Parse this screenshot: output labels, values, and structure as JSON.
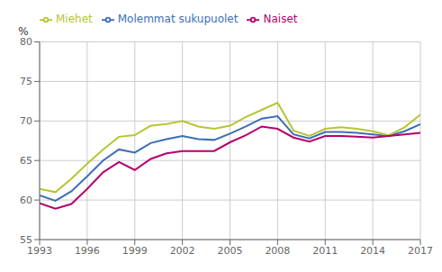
{
  "chart_data": {
    "type": "line",
    "y_label": "%",
    "x": [
      1993,
      1994,
      1995,
      1996,
      1997,
      1998,
      1999,
      2000,
      2001,
      2002,
      2003,
      2004,
      2005,
      2006,
      2007,
      2008,
      2009,
      2010,
      2011,
      2012,
      2013,
      2014,
      2015,
      2016,
      2017
    ],
    "series": [
      {
        "name": "Molemmat sukupuolet",
        "color": "#3d6eb5",
        "values": [
          60.6,
          59.9,
          61.1,
          63.0,
          65.0,
          66.4,
          66.0,
          67.2,
          67.7,
          68.1,
          67.7,
          67.6,
          68.4,
          69.3,
          70.3,
          70.6,
          68.3,
          67.8,
          68.6,
          68.6,
          68.5,
          68.3,
          68.1,
          68.7,
          69.6
        ]
      },
      {
        "name": "Miehet",
        "color": "#b5c633",
        "values": [
          61.4,
          61.0,
          62.7,
          64.6,
          66.4,
          68.0,
          68.2,
          69.4,
          69.6,
          70.0,
          69.3,
          69.0,
          69.4,
          70.5,
          71.4,
          72.3,
          68.8,
          68.1,
          69.0,
          69.2,
          69.0,
          68.7,
          68.2,
          69.2,
          70.8
        ]
      },
      {
        "name": "Naiset",
        "color": "#b5006e",
        "values": [
          59.6,
          58.9,
          59.5,
          61.4,
          63.5,
          64.8,
          63.8,
          65.2,
          65.9,
          66.2,
          66.2,
          66.2,
          67.3,
          68.2,
          69.3,
          69.0,
          67.9,
          67.4,
          68.1,
          68.1,
          68.0,
          67.9,
          68.1,
          68.3,
          68.5
        ]
      }
    ],
    "xlim": [
      1993,
      2017
    ],
    "xticks": [
      1993,
      1996,
      1999,
      2002,
      2005,
      2008,
      2011,
      2014,
      2017
    ],
    "ylim": [
      55,
      80
    ],
    "yticks": [
      55,
      60,
      65,
      70,
      75,
      80
    ],
    "grid": true,
    "legend": "top-left"
  }
}
